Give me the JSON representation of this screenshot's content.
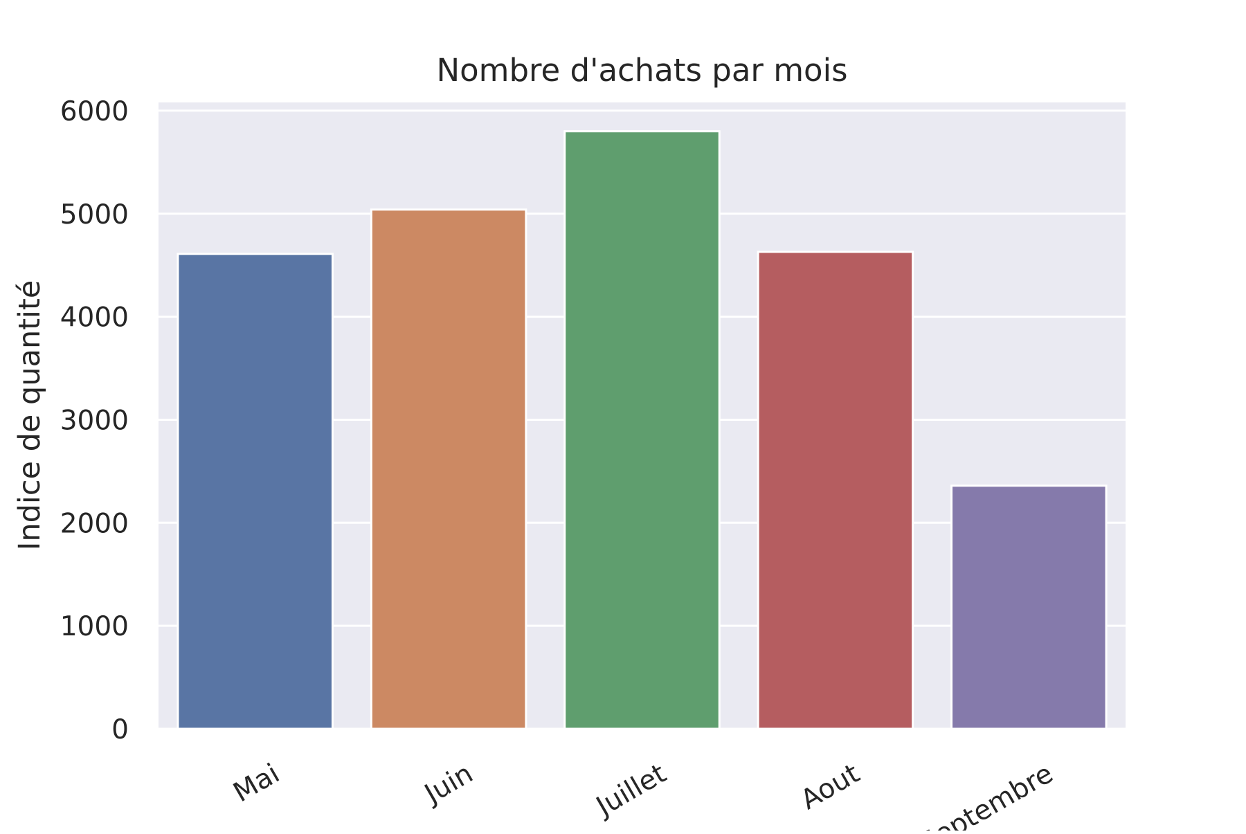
{
  "chart_data": {
    "type": "bar",
    "title": "Nombre d'achats par mois",
    "xlabel": "",
    "ylabel": "Indice de quantité",
    "categories": [
      "Mai",
      "Juin",
      "Juillet",
      "Aout",
      "Septembre"
    ],
    "values": [
      4610,
      5040,
      5800,
      4630,
      2360
    ],
    "colors": [
      "#5975a4",
      "#cc8963",
      "#5f9e6e",
      "#b55d60",
      "#857aab"
    ],
    "ylim": [
      0,
      6080
    ],
    "yticks": [
      0,
      1000,
      2000,
      3000,
      4000,
      5000,
      6000
    ],
    "grid": true,
    "background": "#eaeaf2",
    "legend": "none"
  }
}
